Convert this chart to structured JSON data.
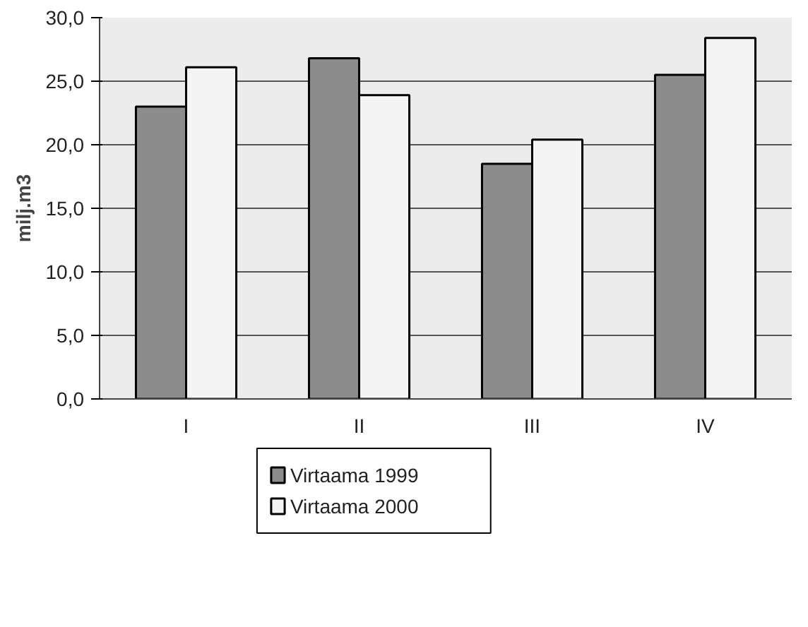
{
  "chart_data": {
    "type": "bar",
    "ylabel": "milj.m3",
    "categories": [
      "I",
      "II",
      "III",
      "IV"
    ],
    "series": [
      {
        "name": "Virtaama  1999",
        "color": "#8c8c8c",
        "values": [
          23.0,
          26.8,
          18.5,
          25.5
        ]
      },
      {
        "name": "Virtaama  2000",
        "color": "#f4f4f4",
        "values": [
          26.1,
          23.9,
          20.4,
          28.4
        ]
      }
    ],
    "ylim": [
      0,
      30
    ],
    "yticks": [
      {
        "value": 0,
        "label": "0,0"
      },
      {
        "value": 5,
        "label": "5,0"
      },
      {
        "value": 10,
        "label": "10,0"
      },
      {
        "value": 15,
        "label": "15,0"
      },
      {
        "value": 20,
        "label": "20,0"
      },
      {
        "value": 25,
        "label": "25,0"
      },
      {
        "value": 30,
        "label": "30,0"
      }
    ],
    "grid": "y",
    "legend": "bottom"
  }
}
